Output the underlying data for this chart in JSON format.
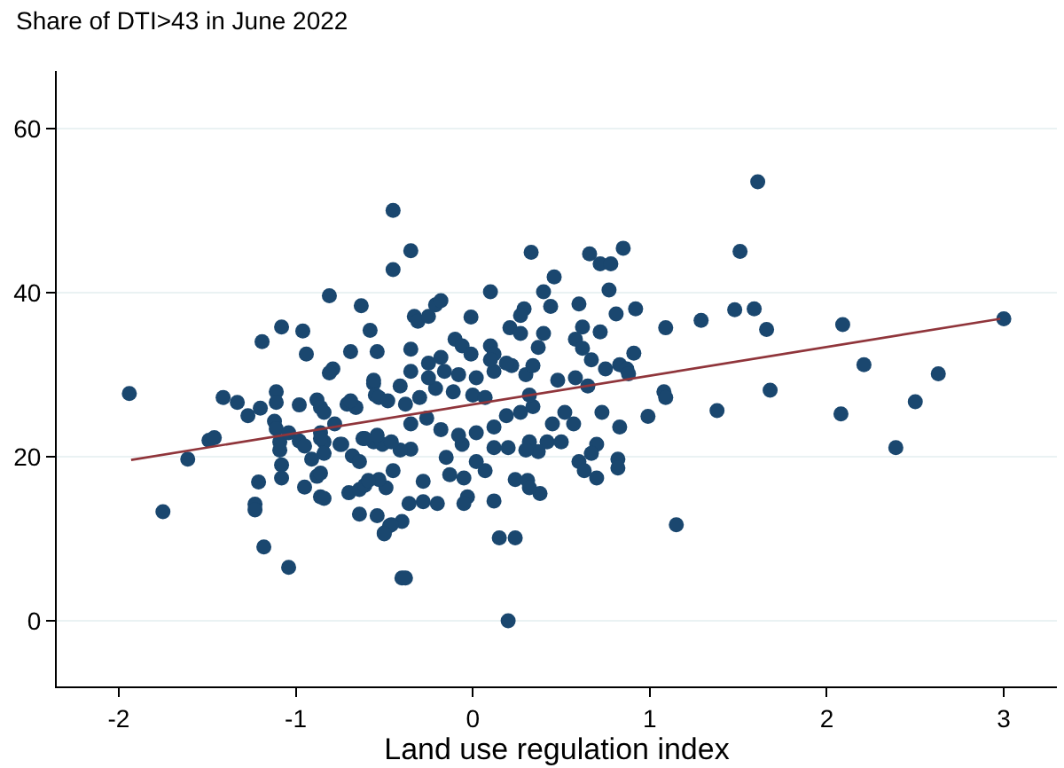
{
  "chart_data": {
    "type": "scatter",
    "title": "Share of DTI>43 in June 2022",
    "xlabel": "Land use regulation index",
    "xlim": [
      -2.35,
      3.3
    ],
    "xticks": [
      -2,
      -1,
      0,
      1,
      2,
      3
    ],
    "ylim": [
      -8,
      67
    ],
    "yticks": [
      0,
      20,
      40,
      60
    ],
    "grid": "y",
    "marker": "circle",
    "series": [
      {
        "color": "#1a476f",
        "x": [
          -1.94,
          -1.75,
          -1.61,
          -1.49,
          -1.46,
          -1.41,
          -1.33,
          -1.27,
          -1.2,
          -1.21,
          -1.23,
          -1.23,
          -1.18,
          -1.19,
          -1.08,
          -0.96,
          -0.94,
          -1.04,
          -1.11,
          -1.11,
          -1.12,
          -1.11,
          -1.09,
          -1.09,
          -1.08,
          -1.08,
          -0.98,
          -1.04,
          -0.95,
          -0.91,
          -0.88,
          -0.86,
          -0.84,
          -0.98,
          -0.95,
          -0.88,
          -0.86,
          -0.84,
          -0.86,
          -0.84,
          -0.81,
          -0.79,
          -0.69,
          -0.75,
          -0.71,
          -0.66,
          -0.68,
          -0.64,
          -0.7,
          -0.64,
          -0.61,
          -0.64,
          -0.63,
          -0.58,
          -0.54,
          -0.56,
          -0.55,
          -0.53,
          -0.62,
          -0.56,
          -0.51,
          -0.54,
          -0.5,
          -0.47,
          -0.45,
          -0.45,
          -0.4,
          -0.35,
          -0.81,
          -0.33,
          -0.31,
          -0.25,
          -0.21,
          -0.18,
          -0.01,
          0.1,
          -0.1,
          -0.06,
          -0.01,
          -0.35,
          0.1,
          0.12,
          0.21,
          0.27,
          0.29,
          0.27,
          0.4,
          0.44,
          0.33,
          0.46,
          0.37,
          0.4,
          0.6,
          0.66,
          0.72,
          0.78,
          0.85,
          0.77,
          0.81,
          0.92,
          0.72,
          0.62,
          0.58,
          0.62,
          0.67,
          0.75,
          0.83,
          0.91,
          1.09,
          1.08,
          1.09,
          0.99,
          0.83,
          0.73,
          0.82,
          0.82,
          0.7,
          0.67,
          0.6,
          0.63,
          0.7,
          0.52,
          0.45,
          0.57,
          0.42,
          0.5,
          0.37,
          0.32,
          0.3,
          0.38,
          0.24,
          0.31,
          0.32,
          0.15,
          0.24,
          0.2,
          0.12,
          -0.03,
          -0.05,
          -0.2,
          -0.28,
          -0.28,
          -0.36,
          -0.38,
          -0.4,
          -0.46,
          -0.5,
          -0.13,
          -0.05,
          0.07,
          -0.15,
          -0.06,
          0.02,
          0.12,
          0.2,
          -0.35,
          -0.45,
          -0.49,
          -0.53,
          -0.59,
          -0.41,
          -0.46,
          -0.54,
          -0.61,
          -0.74,
          -0.35,
          -0.26,
          -0.18,
          -0.08,
          0.02,
          0.12,
          0.19,
          0.27,
          0.34,
          0.32,
          -0.48,
          -0.38,
          -0.3,
          -0.21,
          -0.11,
          0.0,
          0.07,
          -0.41,
          -0.25,
          -0.16,
          -0.08,
          0.02,
          0.12,
          0.22,
          0.3,
          0.34,
          -0.35,
          -0.25,
          -0.18,
          0.1,
          0.19,
          0.48,
          0.58,
          0.65,
          -0.78,
          -0.69,
          -0.56,
          -0.86,
          -0.84,
          -0.86,
          1.61,
          1.51,
          1.29,
          1.48,
          1.59,
          1.66,
          2.09,
          3.0,
          0.87,
          0.88,
          2.21,
          2.63,
          1.38,
          1.68,
          2.08,
          2.5,
          2.39,
          1.15
        ],
        "values": [
          27.7,
          13.3,
          19.7,
          22.0,
          22.3,
          27.2,
          26.6,
          25.0,
          25.9,
          16.9,
          14.2,
          13.5,
          9.0,
          34.0,
          35.8,
          35.3,
          32.5,
          6.5,
          27.9,
          26.6,
          24.3,
          23.4,
          21.8,
          20.8,
          19.0,
          17.4,
          26.3,
          22.9,
          16.3,
          19.7,
          17.6,
          15.1,
          14.9,
          21.9,
          21.3,
          26.9,
          26.0,
          25.4,
          22.9,
          21.8,
          39.6,
          30.7,
          32.8,
          21.5,
          26.4,
          26.0,
          20.1,
          19.4,
          15.6,
          16.0,
          16.5,
          13.0,
          38.4,
          35.4,
          32.8,
          28.9,
          27.5,
          27.2,
          22.2,
          21.8,
          21.5,
          12.8,
          10.7,
          11.6,
          50.0,
          42.8,
          5.2,
          45.1,
          30.2,
          37.1,
          36.5,
          37.1,
          38.5,
          39.0,
          37.0,
          40.1,
          34.3,
          33.5,
          32.5,
          33.1,
          33.5,
          32.5,
          35.7,
          35.0,
          38.0,
          37.2,
          40.1,
          38.3,
          44.9,
          41.9,
          33.3,
          35.0,
          38.6,
          44.7,
          43.5,
          43.5,
          45.4,
          40.3,
          37.4,
          38.0,
          35.2,
          35.8,
          34.3,
          33.2,
          31.8,
          30.7,
          31.2,
          32.6,
          35.7,
          27.9,
          27.2,
          24.9,
          23.6,
          25.4,
          19.7,
          18.6,
          21.5,
          20.4,
          19.4,
          18.3,
          17.4,
          25.4,
          24.0,
          24.0,
          21.8,
          21.8,
          20.6,
          21.8,
          20.8,
          15.5,
          17.2,
          17.1,
          16.2,
          10.1,
          10.1,
          0.0,
          14.6,
          15.1,
          14.3,
          14.3,
          14.5,
          17.0,
          14.3,
          5.2,
          12.1,
          11.7,
          10.6,
          17.8,
          17.4,
          18.3,
          19.9,
          21.5,
          19.4,
          21.1,
          21.1,
          20.9,
          18.3,
          16.2,
          17.2,
          17.1,
          20.8,
          21.8,
          22.6,
          22.2,
          21.5,
          24.0,
          24.7,
          23.3,
          22.6,
          22.9,
          23.6,
          25.0,
          25.4,
          26.1,
          27.5,
          26.8,
          26.4,
          27.2,
          28.3,
          27.9,
          27.5,
          27.2,
          28.6,
          29.6,
          30.4,
          30.0,
          29.6,
          30.4,
          31.1,
          30.0,
          31.1,
          30.4,
          31.4,
          32.1,
          31.8,
          31.4,
          29.3,
          29.6,
          28.6,
          24.0,
          26.8,
          29.3,
          22.2,
          20.4,
          18.0,
          53.5,
          45.0,
          36.6,
          37.9,
          38.0,
          35.5,
          36.1,
          36.8,
          30.7,
          30.1,
          31.2,
          30.1,
          25.6,
          28.1,
          25.2,
          26.7,
          21.1,
          11.7
        ]
      },
      {
        "type": "line",
        "color": "#90353b",
        "x": [
          -1.93,
          2.98
        ],
        "values": [
          19.6,
          36.8
        ],
        "marker": "none"
      }
    ]
  }
}
